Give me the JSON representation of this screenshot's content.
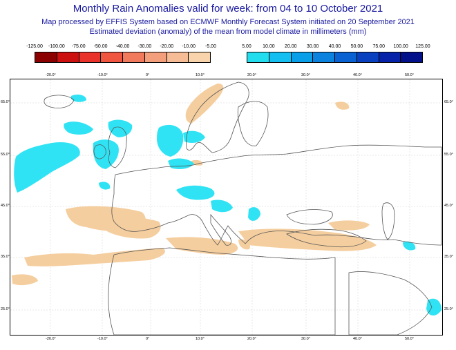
{
  "header": {
    "title": "Monthly Rain Anomalies valid for week: from 04 to 10 October 2021",
    "subtitle1": "Map processed by EFFIS System based on ECMWF Monthly Forecast System initiated on 20 September 2021",
    "subtitle2": "Estimated deviation (anomaly) of the mean from model climate in millimeters (mm)"
  },
  "legend": {
    "negative": {
      "labels": [
        "-125.00",
        "-100.00",
        "-75.00",
        "-50.00",
        "-40.00",
        "-30.00",
        "-20.00",
        "-10.00",
        "-5.00"
      ],
      "colors": [
        "#8b0000",
        "#cc1010",
        "#e8322a",
        "#f0553f",
        "#f27a5c",
        "#f49f7c",
        "#f6bc95",
        "#f9d3ab"
      ]
    },
    "positive": {
      "labels": [
        "5.00",
        "10.00",
        "20.00",
        "30.00",
        "40.00",
        "50.00",
        "75.00",
        "100.00",
        "125.00"
      ],
      "colors": [
        "#22ddee",
        "#12bff0",
        "#089ee8",
        "#0a82de",
        "#0a62d2",
        "#0840c0",
        "#0622a8",
        "#02108a"
      ]
    }
  },
  "map": {
    "lon_labels": [
      "-20.0°",
      "-10.0°",
      "0°",
      "10.0°",
      "20.0°",
      "30.0°",
      "40.0°",
      "50.0°"
    ],
    "lat_labels": [
      "65.0°",
      "55.0°",
      "45.0°",
      "35.0°",
      "25.0°"
    ],
    "wet_color": "#30e3f4",
    "dry_color": "#f5ce9f",
    "border_color": "#555555"
  }
}
